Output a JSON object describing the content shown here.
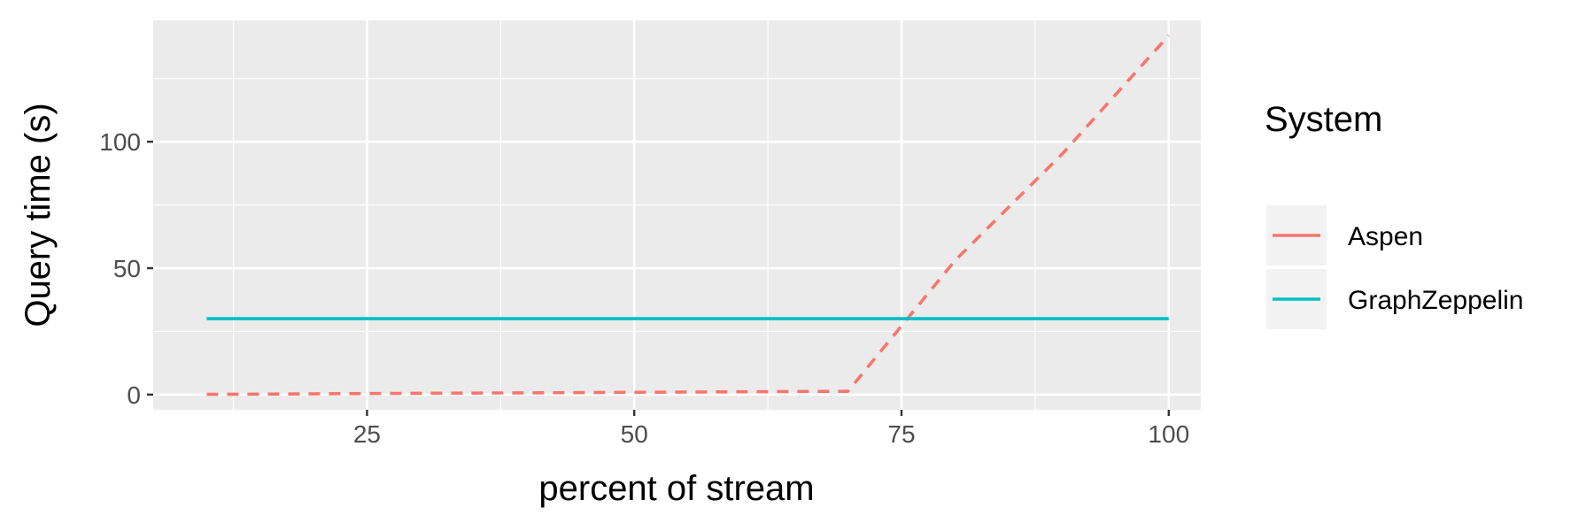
{
  "chart_data": {
    "type": "line",
    "xlabel": "percent of stream",
    "ylabel": "Query time (s)",
    "xlim": [
      5,
      103
    ],
    "ylim": [
      -6,
      148
    ],
    "x_ticks": [
      25,
      50,
      75,
      100
    ],
    "y_ticks": [
      0,
      50,
      100
    ],
    "grid": true,
    "legend": {
      "title": "System",
      "placement": "right"
    },
    "series": [
      {
        "name": "Aspen",
        "color": "#F8766D",
        "dash": "dashed",
        "x": [
          10,
          20,
          30,
          40,
          50,
          60,
          70,
          80,
          90,
          100
        ],
        "y": [
          0.1,
          0.3,
          0.5,
          0.7,
          0.9,
          1.1,
          1.3,
          53,
          95,
          142
        ]
      },
      {
        "name": "GraphZeppelin",
        "color": "#00BFC4",
        "dash": "solid",
        "x": [
          10,
          100
        ],
        "y": [
          30,
          30
        ]
      }
    ]
  }
}
